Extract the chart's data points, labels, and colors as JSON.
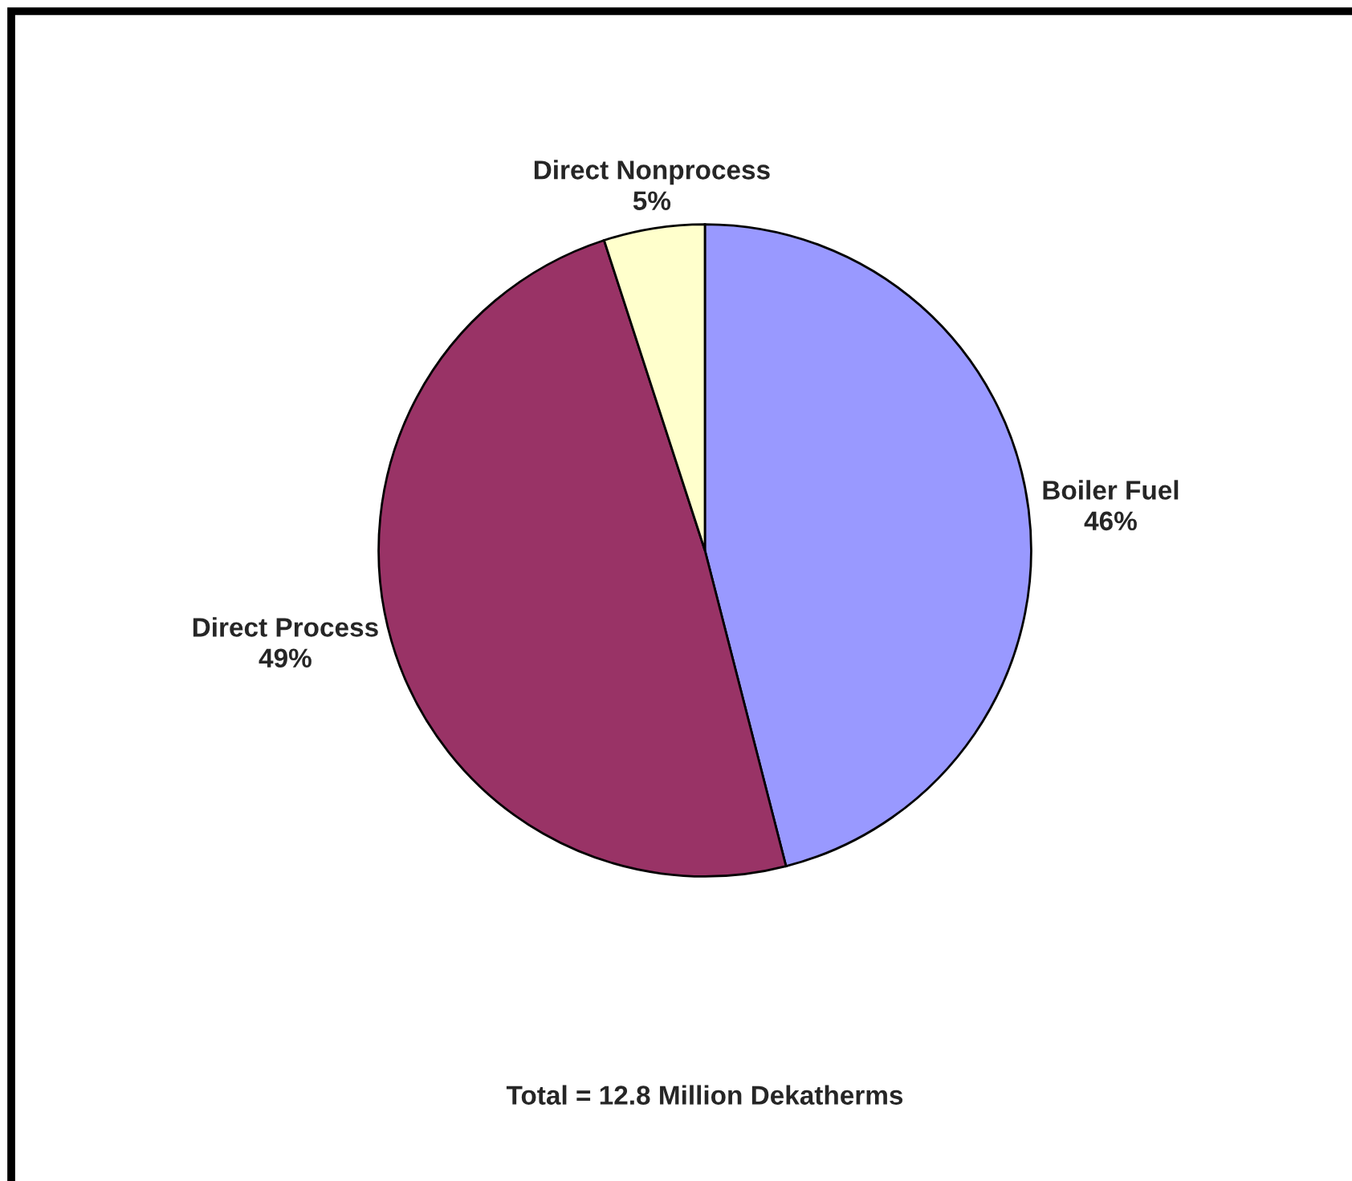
{
  "chart_data": {
    "type": "pie",
    "categories": [
      "Boiler Fuel",
      "Direct Process",
      "Direct Nonprocess"
    ],
    "values": [
      46,
      49,
      5
    ],
    "colors": [
      "#9999ff",
      "#993366",
      "#ffffcc"
    ],
    "value_labels": [
      "46%",
      "49%",
      "5%"
    ],
    "annotations": [
      "Total = 12.8 Million Dekatherms"
    ]
  }
}
